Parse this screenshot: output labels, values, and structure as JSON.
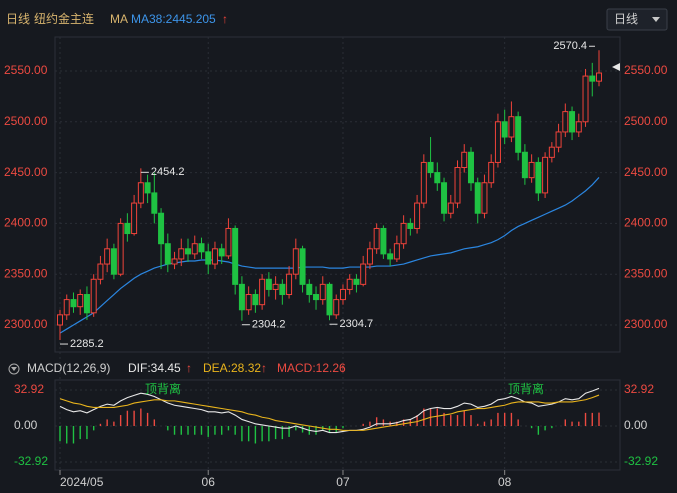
{
  "header": {
    "period": "日线",
    "symbol": "纽约金主连",
    "ma_tag": "MA",
    "ma_legend": "MA38:2445.205",
    "arrow": "↑",
    "dropdown": "日线"
  },
  "chart_data": [
    {
      "type": "candlestick",
      "up_color": "#f0433a",
      "down_color": "#1fc243",
      "candles": [
        [
          2300,
          2315,
          2285.2,
          2310
        ],
        [
          2310,
          2330,
          2305,
          2325
        ],
        [
          2325,
          2332,
          2312,
          2318
        ],
        [
          2318,
          2335,
          2310,
          2330
        ],
        [
          2330,
          2338,
          2305,
          2312
        ],
        [
          2312,
          2350,
          2308,
          2345
        ],
        [
          2345,
          2368,
          2340,
          2360
        ],
        [
          2360,
          2385,
          2352,
          2375
        ],
        [
          2375,
          2380,
          2345,
          2350
        ],
        [
          2350,
          2405,
          2348,
          2400
        ],
        [
          2400,
          2410,
          2382,
          2390
        ],
        [
          2390,
          2428,
          2388,
          2420
        ],
        [
          2420,
          2454.2,
          2415,
          2440
        ],
        [
          2440,
          2448,
          2420,
          2430
        ],
        [
          2430,
          2450,
          2400,
          2410
        ],
        [
          2410,
          2415,
          2355,
          2380
        ],
        [
          2380,
          2390,
          2352,
          2360
        ],
        [
          2360,
          2372,
          2355,
          2365
        ],
        [
          2365,
          2385,
          2358,
          2375
        ],
        [
          2375,
          2385,
          2362,
          2370
        ],
        [
          2370,
          2388,
          2365,
          2380
        ],
        [
          2380,
          2386,
          2365,
          2372
        ],
        [
          2372,
          2380,
          2350,
          2360
        ],
        [
          2360,
          2382,
          2355,
          2375
        ],
        [
          2375,
          2380,
          2360,
          2368
        ],
        [
          2368,
          2405,
          2365,
          2395
        ],
        [
          2395,
          2398,
          2330,
          2340
        ],
        [
          2340,
          2348,
          2304.2,
          2315
        ],
        [
          2315,
          2338,
          2310,
          2330
        ],
        [
          2330,
          2335,
          2312,
          2320
        ],
        [
          2320,
          2350,
          2315,
          2345
        ],
        [
          2345,
          2352,
          2328,
          2335
        ],
        [
          2335,
          2348,
          2325,
          2340
        ],
        [
          2340,
          2345,
          2320,
          2330
        ],
        [
          2330,
          2358,
          2326,
          2350
        ],
        [
          2350,
          2385,
          2345,
          2375
        ],
        [
          2375,
          2378,
          2332,
          2340
        ],
        [
          2340,
          2345,
          2322,
          2330
        ],
        [
          2330,
          2338,
          2315,
          2325
        ],
        [
          2325,
          2348,
          2320,
          2340
        ],
        [
          2340,
          2342,
          2304.7,
          2310
        ],
        [
          2310,
          2330,
          2306,
          2325
        ],
        [
          2325,
          2340,
          2320,
          2335
        ],
        [
          2335,
          2350,
          2330,
          2345
        ],
        [
          2345,
          2350,
          2332,
          2340
        ],
        [
          2340,
          2368,
          2338,
          2360
        ],
        [
          2360,
          2382,
          2355,
          2375
        ],
        [
          2375,
          2400,
          2370,
          2395
        ],
        [
          2395,
          2398,
          2365,
          2370
        ],
        [
          2370,
          2375,
          2358,
          2365
        ],
        [
          2365,
          2388,
          2362,
          2380
        ],
        [
          2380,
          2408,
          2375,
          2400
        ],
        [
          2400,
          2405,
          2388,
          2395
        ],
        [
          2395,
          2428,
          2390,
          2420
        ],
        [
          2420,
          2468,
          2415,
          2460
        ],
        [
          2460,
          2485,
          2445,
          2450
        ],
        [
          2450,
          2460,
          2432,
          2440
        ],
        [
          2440,
          2445,
          2402,
          2410
        ],
        [
          2410,
          2428,
          2405,
          2420
        ],
        [
          2420,
          2462,
          2415,
          2455
        ],
        [
          2455,
          2478,
          2450,
          2470
        ],
        [
          2470,
          2475,
          2432,
          2440
        ],
        [
          2440,
          2445,
          2400,
          2410
        ],
        [
          2410,
          2448,
          2405,
          2440
        ],
        [
          2440,
          2468,
          2435,
          2460
        ],
        [
          2460,
          2508,
          2455,
          2500
        ],
        [
          2500,
          2512,
          2478,
          2485
        ],
        [
          2485,
          2520,
          2480,
          2505
        ],
        [
          2505,
          2510,
          2462,
          2470
        ],
        [
          2470,
          2478,
          2438,
          2445
        ],
        [
          2445,
          2468,
          2440,
          2460
        ],
        [
          2460,
          2465,
          2422,
          2430
        ],
        [
          2430,
          2470,
          2425,
          2465
        ],
        [
          2465,
          2480,
          2460,
          2475
        ],
        [
          2475,
          2498,
          2470,
          2490
        ],
        [
          2490,
          2518,
          2485,
          2510
        ],
        [
          2510,
          2515,
          2482,
          2490
        ],
        [
          2490,
          2508,
          2485,
          2500
        ],
        [
          2500,
          2552,
          2495,
          2545
        ],
        [
          2545,
          2558,
          2525,
          2540
        ],
        [
          2540,
          2570.4,
          2535,
          2548
        ]
      ],
      "series": [
        {
          "name": "MA38",
          "color": "#2b86e0",
          "values": [
            2292,
            2296,
            2300,
            2304,
            2308,
            2312,
            2318,
            2324,
            2330,
            2336,
            2341,
            2346,
            2350,
            2353,
            2356,
            2358,
            2360,
            2361,
            2362,
            2363,
            2363,
            2364,
            2364,
            2364,
            2363,
            2362,
            2360,
            2358,
            2357,
            2356,
            2356,
            2356,
            2356,
            2356,
            2356,
            2356,
            2357,
            2357,
            2357,
            2357,
            2356,
            2356,
            2356,
            2357,
            2357,
            2357,
            2357,
            2358,
            2358,
            2358,
            2359,
            2360,
            2362,
            2364,
            2366,
            2368,
            2369,
            2370,
            2371,
            2373,
            2375,
            2376,
            2377,
            2379,
            2381,
            2384,
            2388,
            2393,
            2397,
            2400,
            2403,
            2406,
            2409,
            2412,
            2415,
            2418,
            2422,
            2427,
            2432,
            2438,
            2445.205
          ]
        }
      ],
      "ylim": [
        2275,
        2580
      ],
      "yticks": [
        {
          "value": 2300,
          "label": "2300.00"
        },
        {
          "value": 2350,
          "label": "2350.00"
        },
        {
          "value": 2400,
          "label": "2400.00"
        },
        {
          "value": 2450,
          "label": "2450.00"
        },
        {
          "value": 2500,
          "label": "2500.00"
        },
        {
          "value": 2550,
          "label": "2550.00"
        }
      ],
      "xticks": [
        {
          "value": 0,
          "label": "2024/05"
        },
        {
          "value": 22,
          "label": "06"
        },
        {
          "value": 42,
          "label": "07"
        },
        {
          "value": 66,
          "label": "08"
        }
      ],
      "grid": true
    },
    {
      "type": "macd",
      "title": "MACD(12,26,9)",
      "legend": [
        "DIF:34.45",
        "DEA:28.32",
        "MACD:12.26"
      ],
      "arrow": "↑",
      "annotations": [
        "顶背离",
        "顶背离"
      ],
      "series": [
        {
          "name": "DIF",
          "color": "#e8e8e8",
          "values": [
            18,
            15,
            13,
            14,
            12,
            15,
            18,
            20,
            19,
            23,
            26,
            28,
            30,
            29,
            27,
            24,
            21,
            19,
            18,
            17,
            16,
            15,
            13,
            13,
            12,
            13,
            10,
            6,
            4,
            2,
            1,
            0,
            -1,
            -2,
            -2,
            0,
            -2,
            -4,
            -5,
            -4,
            -6,
            -6,
            -5,
            -4,
            -4,
            -3,
            -1,
            2,
            2,
            2,
            3,
            5,
            6,
            9,
            14,
            16,
            17,
            16,
            16,
            18,
            21,
            20,
            17,
            18,
            20,
            24,
            25,
            27,
            25,
            22,
            21,
            18,
            19,
            20,
            22,
            25,
            24,
            25,
            30,
            32,
            34.45
          ]
        },
        {
          "name": "DEA",
          "color": "#e9b41c",
          "values": [
            25,
            23,
            21,
            20,
            18,
            17,
            17,
            17,
            17,
            18,
            19,
            21,
            22,
            23,
            24,
            24,
            23,
            23,
            22,
            21,
            20,
            19,
            18,
            17,
            16,
            15,
            14,
            13,
            11,
            10,
            8,
            7,
            5,
            4,
            3,
            2,
            1,
            0,
            -1,
            -2,
            -3,
            -3,
            -4,
            -4,
            -4,
            -4,
            -3,
            -2,
            -1,
            0,
            1,
            2,
            3,
            4,
            6,
            8,
            9,
            10,
            11,
            13,
            14,
            15,
            16,
            16,
            17,
            18,
            19,
            21,
            22,
            22,
            22,
            22,
            21,
            21,
            22,
            22,
            22,
            23,
            24,
            26,
            28.32
          ]
        }
      ],
      "bars": [
        -14,
        -16,
        -16,
        -12,
        -12,
        -4,
        2,
        6,
        4,
        10,
        14,
        14,
        16,
        12,
        6,
        0,
        -4,
        -8,
        -8,
        -8,
        -8,
        -8,
        -10,
        -8,
        -8,
        -4,
        -8,
        -14,
        -14,
        -16,
        -14,
        -14,
        -12,
        -12,
        -10,
        -4,
        -6,
        -8,
        -8,
        -4,
        -6,
        -6,
        -2,
        0,
        0,
        2,
        4,
        8,
        6,
        4,
        4,
        6,
        6,
        10,
        16,
        16,
        16,
        12,
        10,
        10,
        14,
        10,
        2,
        4,
        6,
        12,
        12,
        12,
        6,
        0,
        -2,
        -8,
        -4,
        -2,
        0,
        6,
        4,
        4,
        12,
        12,
        12.26
      ],
      "ylim": [
        -42,
        42
      ],
      "yticks": [
        {
          "value": 32.92,
          "label": "32.92"
        },
        {
          "value": 0,
          "label": "0.00"
        },
        {
          "value": -32.92,
          "label": "-32.92"
        }
      ]
    }
  ]
}
